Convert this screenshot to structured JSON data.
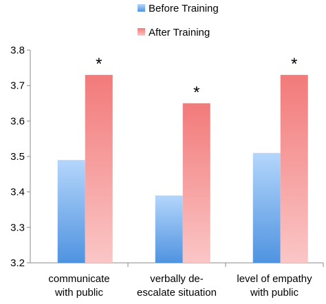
{
  "chart_data": {
    "type": "bar",
    "categories": [
      [
        "communicate",
        "with public"
      ],
      [
        "verbally de-",
        "escalate situation"
      ],
      [
        "level of empathy",
        "with public"
      ]
    ],
    "series": [
      {
        "name": "Before Training",
        "values": [
          3.49,
          3.39,
          3.51
        ],
        "color": "#6ea8e8"
      },
      {
        "name": "After Training",
        "values": [
          3.73,
          3.65,
          3.73
        ],
        "color": "#ec7070"
      }
    ],
    "annotations": [
      "*",
      "*",
      "*"
    ],
    "ylim": [
      3.2,
      3.8
    ],
    "yticks": [
      "3.2",
      "3.3",
      "3.4",
      "3.5",
      "3.6",
      "3.7",
      "3.8"
    ],
    "legend_position": "top",
    "grid": false
  }
}
